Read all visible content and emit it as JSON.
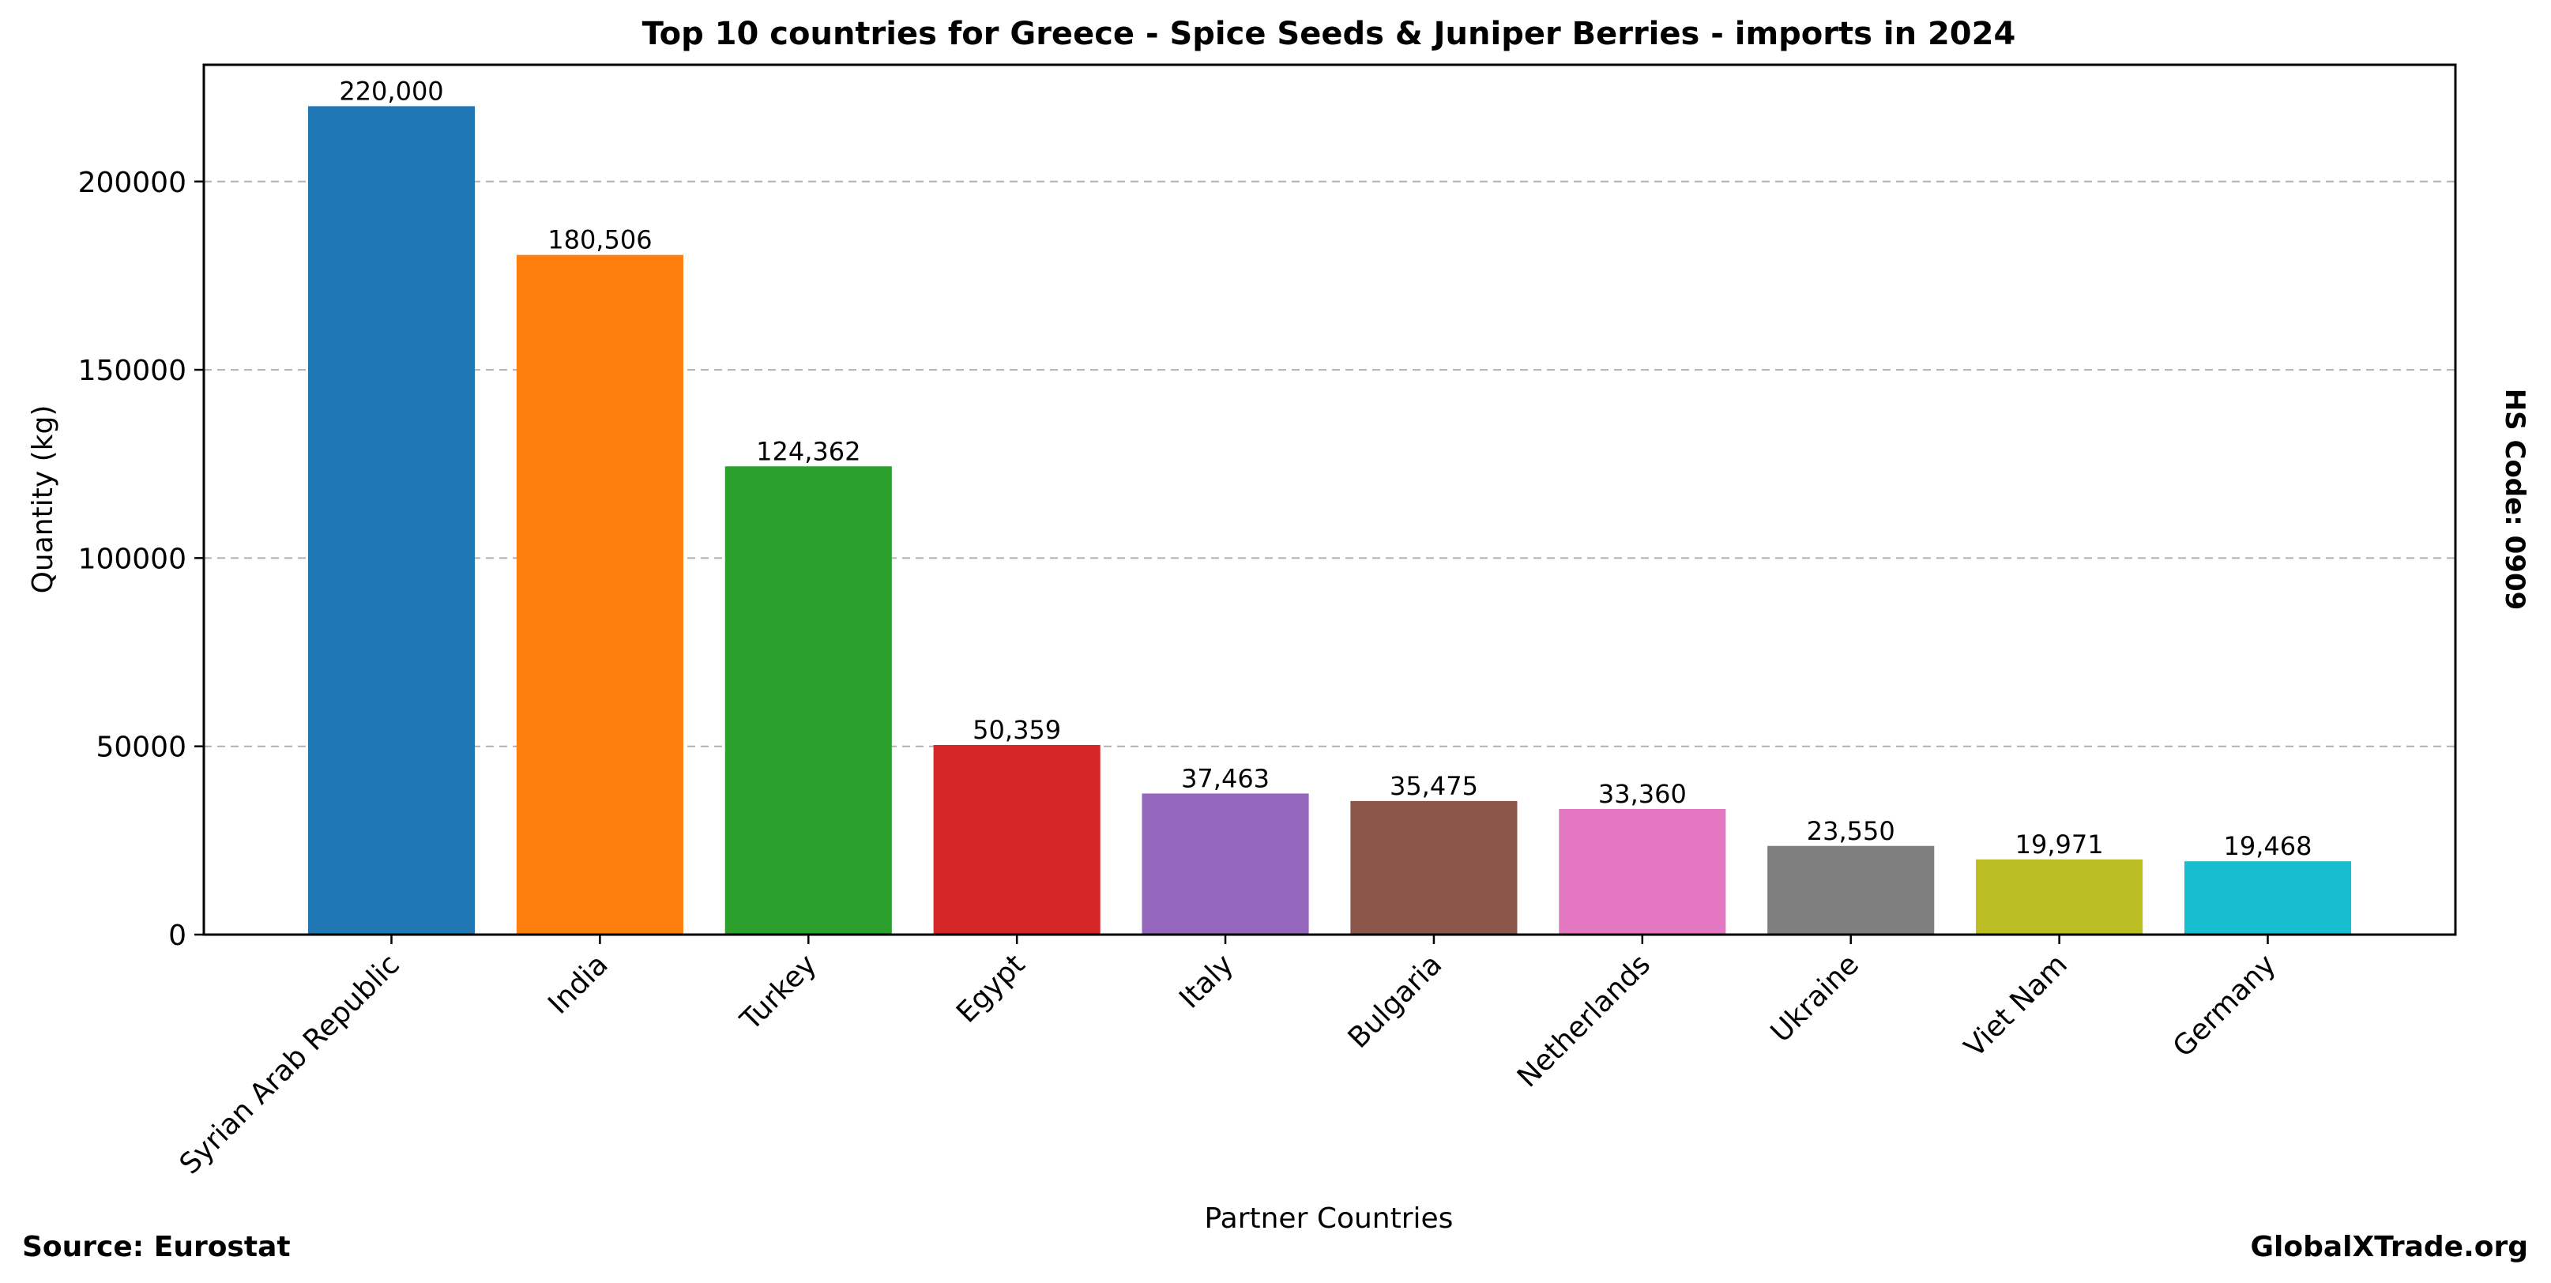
{
  "chart_data": {
    "type": "bar",
    "title": "Top 10 countries for Greece - Spice Seeds & Juniper Berries - imports in 2024",
    "xlabel": "Partner Countries",
    "ylabel": "Quantity (kg)",
    "categories": [
      "Syrian Arab Republic",
      "India",
      "Turkey",
      "Egypt",
      "Italy",
      "Bulgaria",
      "Netherlands",
      "Ukraine",
      "Viet Nam",
      "Germany"
    ],
    "values": [
      220000,
      180506,
      124362,
      50359,
      37463,
      35475,
      33360,
      23550,
      19971,
      19468
    ],
    "value_labels": [
      "220,000",
      "180,506",
      "124,362",
      "50,359",
      "37,463",
      "35,475",
      "33,360",
      "23,550",
      "19,971",
      "19,468"
    ],
    "colors": [
      "#1f77b4",
      "#ff7f0e",
      "#2ca02c",
      "#d62728",
      "#9467bd",
      "#8c564b",
      "#e377c2",
      "#7f7f7f",
      "#bcbd22",
      "#17becf"
    ],
    "yticks": [
      0,
      50000,
      100000,
      150000,
      200000
    ],
    "ytick_labels": [
      "0",
      "50000",
      "100000",
      "150000",
      "200000"
    ],
    "ylim": [
      0,
      231000
    ],
    "grid": "horizontal dashed",
    "legend": "none"
  },
  "side_note": "HS Code: 0909",
  "footer": {
    "source": "Source: Eurostat",
    "brand": "GlobalXTrade.org"
  }
}
